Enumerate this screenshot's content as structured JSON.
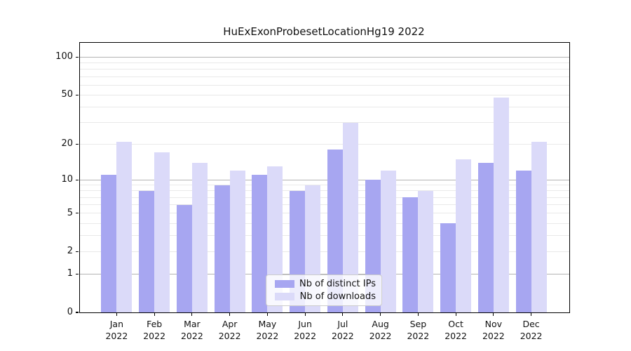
{
  "title": "HuExExonProbesetLocationHg19 2022",
  "chart_data": {
    "type": "bar",
    "title": "HuExExonProbesetLocationHg19 2022",
    "categories": [
      "Jan",
      "Feb",
      "Mar",
      "Apr",
      "May",
      "Jun",
      "Jul",
      "Aug",
      "Sep",
      "Oct",
      "Nov",
      "Dec"
    ],
    "category_year": "2022",
    "series": [
      {
        "name": "Nb of distinct IPs",
        "color": "#a7a6f1",
        "values": [
          11,
          8,
          6,
          9,
          11,
          8,
          18,
          10,
          7,
          4,
          14,
          12
        ]
      },
      {
        "name": "Nb of downloads",
        "color": "#dbdaf9",
        "values": [
          21,
          17,
          14,
          12,
          13,
          9,
          30,
          12,
          8,
          15,
          48,
          21
        ]
      }
    ],
    "y_axis": {
      "scale": "log1p",
      "ticks": [
        0,
        1,
        2,
        5,
        10,
        20,
        50,
        100
      ],
      "max": 130,
      "major_gridlines": [
        1,
        10,
        100
      ],
      "minor_gridlines": [
        2,
        3,
        4,
        6,
        7,
        8,
        9,
        20,
        30,
        40,
        60,
        70,
        80,
        90
      ],
      "labeled_minor_gridlines": [
        2,
        5,
        20,
        50
      ]
    },
    "xlabel": "",
    "ylabel": "",
    "grid": true,
    "legend_position": "lower center"
  },
  "colors": {
    "background": "#ffffff",
    "axis": "#000000",
    "major_gridline": "#b3b3b3",
    "minor_gridline": "#e9e9e9",
    "text": "#111111"
  }
}
